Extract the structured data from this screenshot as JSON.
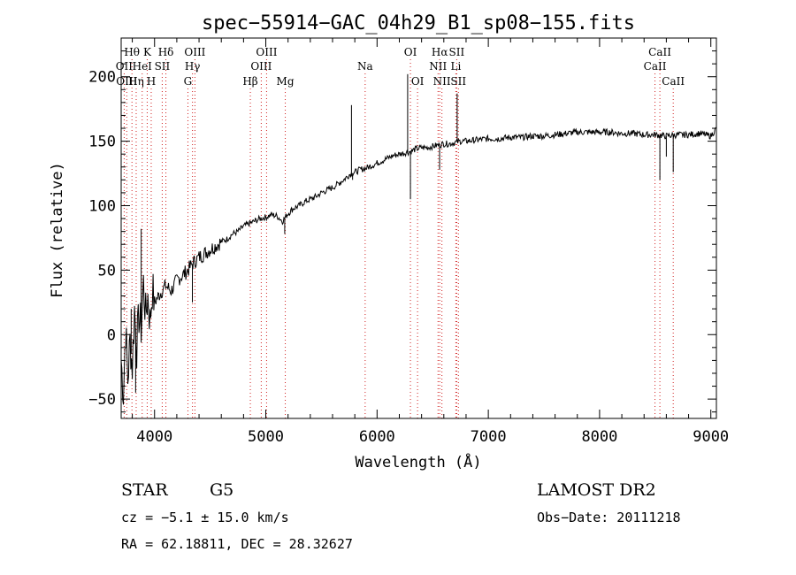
{
  "chart_data": {
    "type": "line",
    "title": "spec−55914−GAC_04h29_B1_sp08−155.fits",
    "xlabel": "Wavelength (Å)",
    "ylabel": "Flux (relative)",
    "xlim": [
      3700,
      9050
    ],
    "ylim": [
      -65,
      230
    ],
    "x_ticks": [
      4000,
      5000,
      6000,
      7000,
      8000,
      9000
    ],
    "y_ticks": [
      -50,
      0,
      50,
      100,
      150,
      200
    ],
    "x_tick_labels": [
      "4000",
      "5000",
      "6000",
      "7000",
      "8000",
      "9000"
    ],
    "y_tick_labels": [
      "−50",
      "0",
      "50",
      "100",
      "150",
      "200"
    ],
    "grid": false,
    "legend": "none",
    "series": [
      {
        "values": [
          [
            3700,
            -20
          ],
          [
            3720,
            -45
          ],
          [
            3740,
            5
          ],
          [
            3760,
            -35
          ],
          [
            3780,
            -5
          ],
          [
            3800,
            -25
          ],
          [
            3820,
            20
          ],
          [
            3840,
            -10
          ],
          [
            3860,
            15
          ],
          [
            3880,
            5
          ],
          [
            3900,
            40
          ],
          [
            3920,
            15
          ],
          [
            3940,
            30
          ],
          [
            3960,
            10
          ],
          [
            3980,
            35
          ],
          [
            4000,
            25
          ],
          [
            4050,
            32
          ],
          [
            4100,
            38
          ],
          [
            4150,
            34
          ],
          [
            4200,
            42
          ],
          [
            4250,
            46
          ],
          [
            4300,
            50
          ],
          [
            4350,
            56
          ],
          [
            4400,
            60
          ],
          [
            4450,
            63
          ],
          [
            4500,
            66
          ],
          [
            4550,
            69
          ],
          [
            4600,
            72
          ],
          [
            4650,
            74
          ],
          [
            4700,
            78
          ],
          [
            4750,
            80
          ],
          [
            4800,
            84
          ],
          [
            4850,
            86
          ],
          [
            4900,
            88
          ],
          [
            4950,
            90
          ],
          [
            5000,
            91
          ],
          [
            5050,
            93
          ],
          [
            5100,
            92
          ],
          [
            5150,
            88
          ],
          [
            5200,
            94
          ],
          [
            5250,
            98
          ],
          [
            5300,
            100
          ],
          [
            5350,
            103
          ],
          [
            5400,
            105
          ],
          [
            5450,
            107
          ],
          [
            5500,
            110
          ],
          [
            5550,
            112
          ],
          [
            5600,
            114
          ],
          [
            5650,
            117
          ],
          [
            5700,
            120
          ],
          [
            5750,
            124
          ],
          [
            5800,
            126
          ],
          [
            5850,
            128
          ],
          [
            5900,
            129
          ],
          [
            5950,
            131
          ],
          [
            6000,
            133
          ],
          [
            6050,
            135
          ],
          [
            6100,
            137
          ],
          [
            6150,
            139
          ],
          [
            6200,
            140
          ],
          [
            6250,
            141
          ],
          [
            6300,
            142
          ],
          [
            6350,
            144
          ],
          [
            6400,
            145
          ],
          [
            6450,
            145
          ],
          [
            6500,
            146
          ],
          [
            6550,
            147
          ],
          [
            6600,
            148
          ],
          [
            6650,
            148
          ],
          [
            6700,
            149
          ],
          [
            6750,
            150
          ],
          [
            6800,
            150
          ],
          [
            6900,
            151
          ],
          [
            7000,
            152
          ],
          [
            7100,
            152
          ],
          [
            7200,
            153
          ],
          [
            7300,
            153
          ],
          [
            7400,
            154
          ],
          [
            7500,
            154
          ],
          [
            7600,
            155
          ],
          [
            7700,
            156
          ],
          [
            7800,
            157
          ],
          [
            7900,
            157
          ],
          [
            8000,
            157
          ],
          [
            8100,
            157
          ],
          [
            8200,
            156
          ],
          [
            8300,
            156
          ],
          [
            8400,
            155
          ],
          [
            8500,
            155
          ],
          [
            8600,
            154
          ],
          [
            8700,
            155
          ],
          [
            8800,
            155
          ],
          [
            8900,
            156
          ],
          [
            9000,
            154
          ],
          [
            9050,
            160
          ]
        ]
      }
    ],
    "spikes": [
      {
        "x": 3790,
        "y": 20
      },
      {
        "x": 3830,
        "y": -45
      },
      {
        "x": 3880,
        "y": 82
      },
      {
        "x": 4340,
        "y": 25
      },
      {
        "x": 5170,
        "y": 78
      },
      {
        "x": 5770,
        "y": 178
      },
      {
        "x": 5780,
        "y": 120
      },
      {
        "x": 6275,
        "y": 202
      },
      {
        "x": 6300,
        "y": 105
      },
      {
        "x": 6562,
        "y": 128
      },
      {
        "x": 6720,
        "y": 187
      },
      {
        "x": 8542,
        "y": 120
      },
      {
        "x": 8600,
        "y": 138
      },
      {
        "x": 8662,
        "y": 126
      }
    ],
    "line_markers": [
      {
        "x": 3727,
        "label": "OII",
        "row": 2
      },
      {
        "x": 3750,
        "label": "OIII",
        "row": 3
      },
      {
        "x": 3797,
        "label": "Hθ",
        "row": 1
      },
      {
        "x": 3835,
        "label": "Hη",
        "row": 3
      },
      {
        "x": 3889,
        "label": "HeI",
        "row": 2
      },
      {
        "x": 3934,
        "label": "K",
        "row": 1
      },
      {
        "x": 3970,
        "label": "H",
        "row": 3
      },
      {
        "x": 4069,
        "label": "SII",
        "row": 2
      },
      {
        "x": 4102,
        "label": "Hδ",
        "row": 1
      },
      {
        "x": 4300,
        "label": "G",
        "row": 3
      },
      {
        "x": 4341,
        "label": "Hγ",
        "row": 2
      },
      {
        "x": 4363,
        "label": "OIII",
        "row": 1
      },
      {
        "x": 4861,
        "label": "Hβ",
        "row": 3
      },
      {
        "x": 4959,
        "label": "OIII",
        "row": 2
      },
      {
        "x": 5007,
        "label": "OIII",
        "row": 1
      },
      {
        "x": 5175,
        "label": "Mg",
        "row": 3
      },
      {
        "x": 5893,
        "label": "Na",
        "row": 2
      },
      {
        "x": 6300,
        "label": "OI",
        "row": 1
      },
      {
        "x": 6364,
        "label": "OI",
        "row": 3
      },
      {
        "x": 6548,
        "label": "NII",
        "row": 2
      },
      {
        "x": 6563,
        "label": "Hα",
        "row": 1
      },
      {
        "x": 6583,
        "label": "NII",
        "row": 3
      },
      {
        "x": 6708,
        "label": "Li",
        "row": 2
      },
      {
        "x": 6716,
        "label": "SII",
        "row": 1
      },
      {
        "x": 6731,
        "label": "SII",
        "row": 3
      },
      {
        "x": 8498,
        "label": "CaII",
        "row": 2
      },
      {
        "x": 8542,
        "label": "CaII",
        "row": 1
      },
      {
        "x": 8662,
        "label": "CaII",
        "row": 3
      }
    ]
  },
  "info": {
    "class_label": "STAR",
    "subclass_label": "G5",
    "survey_label": "LAMOST DR2",
    "cz_text": "cz = −5.1 ± 15.0 km/s",
    "obs_date_text": "Obs−Date: 20111218",
    "radec_text": "RA =  62.18811, DEC =  28.32627"
  }
}
